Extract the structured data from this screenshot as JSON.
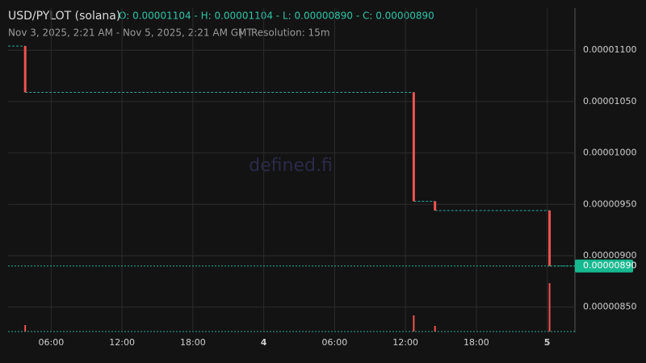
{
  "chart_data": {
    "type": "candlestick",
    "title": "USD/PYLOT (solana)",
    "ohlc": "O: 0.00001104 - H: 0.00001104 - L: 0.00000890 - C: 0.00000890",
    "subtitle": "Nov 3, 2025, 2:21 AM - Nov 5, 2025, 2:21 AM GMT",
    "separator": "|",
    "resolution": "Resolution: 15m",
    "watermark": "defined.fi",
    "x": [
      3.8,
      36.7,
      38.5,
      48.2
    ],
    "open": [
      1.104e-05,
      1.059e-05,
      9.53e-06,
      9.44e-06
    ],
    "high": [
      1.104e-05,
      1.059e-05,
      9.53e-06,
      9.44e-06
    ],
    "low": [
      1.059e-05,
      9.53e-06,
      9.44e-06,
      8.9e-06
    ],
    "close": [
      1.059e-05,
      9.53e-06,
      9.44e-06,
      8.9e-06
    ],
    "volume": [
      8,
      20,
      7,
      60
    ],
    "up_color": "#26a69a",
    "down_color": "#ef5350",
    "last_price": {
      "value": 8.9e-06,
      "label": "0.00000890"
    },
    "last_price_color": "#16b88f",
    "xlim": [
      2.35,
      50.35
    ],
    "xticks": [
      {
        "value": 6,
        "label": "06:00"
      },
      {
        "value": 12,
        "label": "12:00"
      },
      {
        "value": 18,
        "label": "18:00"
      },
      {
        "value": 24,
        "label": "4"
      },
      {
        "value": 30,
        "label": "06:00"
      },
      {
        "value": 36,
        "label": "12:00"
      },
      {
        "value": 42,
        "label": "18:00"
      },
      {
        "value": 48,
        "label": "5"
      }
    ],
    "ylim": [
      8.27e-06,
      1.141e-05
    ],
    "yticks": [
      {
        "value": 8.5e-06,
        "label": "0.00000850"
      },
      {
        "value": 9e-06,
        "label": "0.00000900"
      },
      {
        "value": 9.5e-06,
        "label": "0.00000950"
      },
      {
        "value": 1e-05,
        "label": "0.00001000"
      },
      {
        "value": 1.05e-05,
        "label": "0.00001050"
      },
      {
        "value": 1.1e-05,
        "label": "0.00001100"
      }
    ],
    "grid": true
  }
}
